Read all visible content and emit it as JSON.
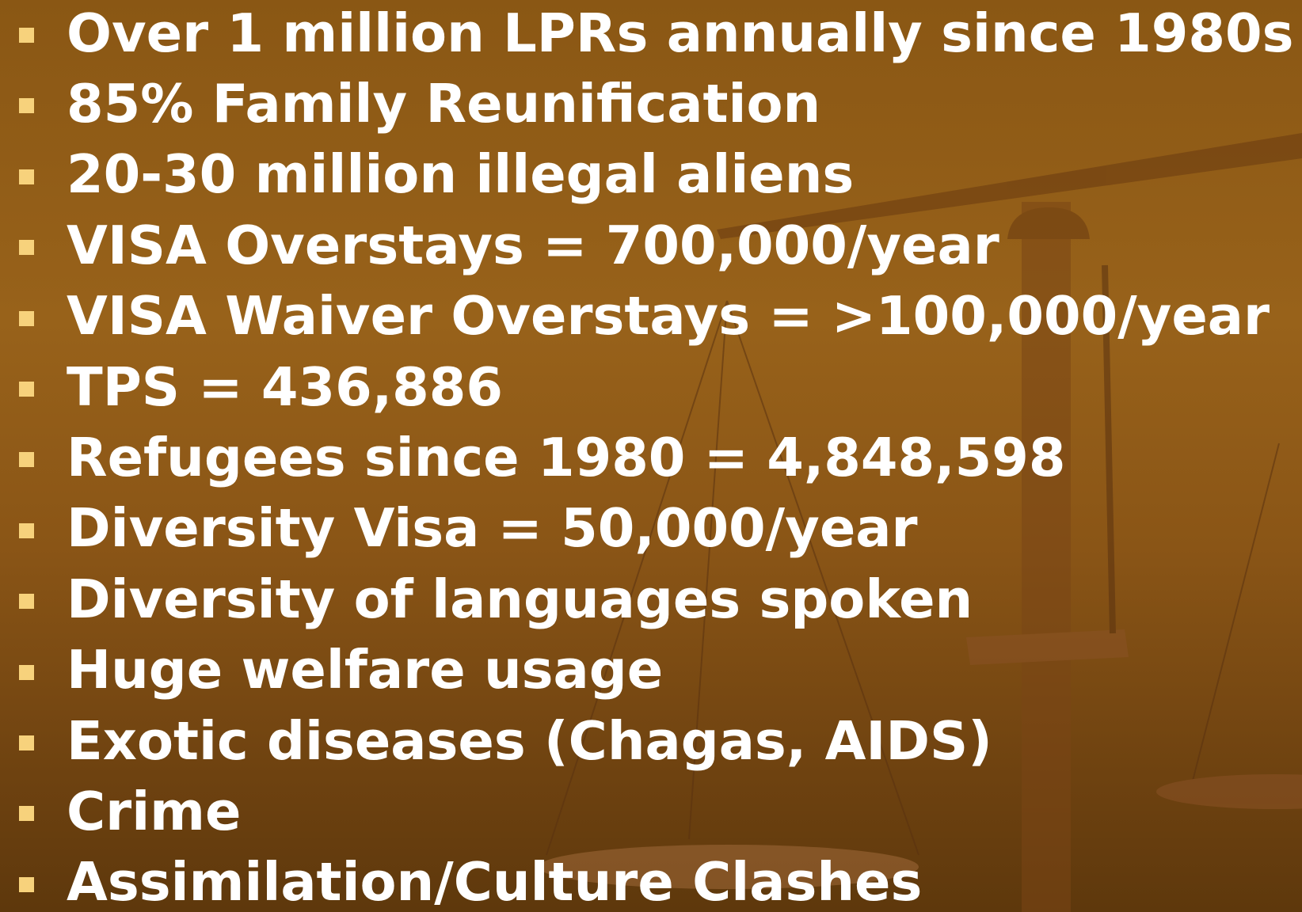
{
  "bullets": [
    "Over 1 million LPRs annually since 1980s",
    "85% Family Reunification",
    "20-30 million illegal aliens",
    "VISA Overstays = 700,000/year",
    "VISA Waiver Overstays = >100,000/year",
    "TPS = 436,886",
    "Refugees since 1980 = 4,848,598",
    "Diversity Visa = 50,000/year",
    "Diversity of languages spoken",
    "Huge welfare usage",
    "Exotic diseases (Chagas, AIDS)",
    "Crime",
    "Assimilation/Culture Clashes"
  ]
}
